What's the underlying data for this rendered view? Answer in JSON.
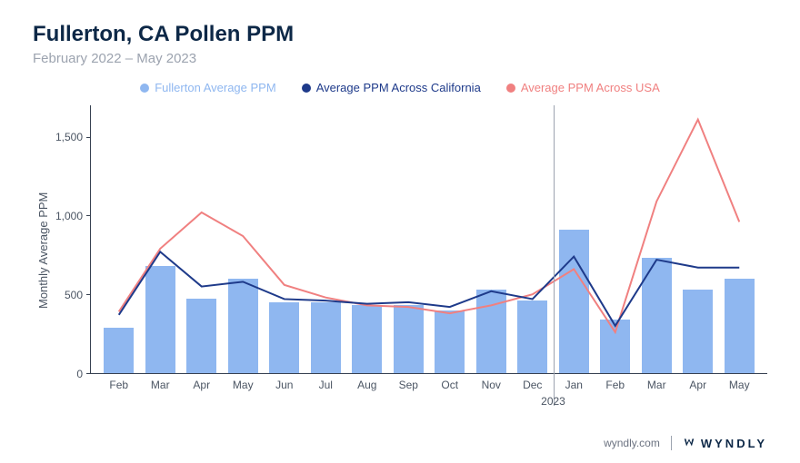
{
  "title": "Fullerton, CA Pollen PPM",
  "subtitle": "February 2022 – May 2023",
  "y_axis_label": "Monthly Average PPM",
  "legend": [
    {
      "label": "Fullerton Average PPM",
      "color": "#8fb7f0",
      "type": "bar"
    },
    {
      "label": "Average PPM Across California",
      "color": "#1e3a8a",
      "type": "line"
    },
    {
      "label": "Average PPM Across USA",
      "color": "#f08080",
      "type": "line"
    }
  ],
  "y_ticks": [
    "1,500",
    "1,000",
    "500",
    "0"
  ],
  "y_max": 1700,
  "categories": [
    "Feb",
    "Mar",
    "Apr",
    "May",
    "Jun",
    "Jul",
    "Aug",
    "Sep",
    "Oct",
    "Nov",
    "Dec",
    "Jan",
    "Feb",
    "Mar",
    "Apr",
    "May"
  ],
  "year_marker": {
    "after_index": 10,
    "label": "2023"
  },
  "series": {
    "bars": {
      "color": "#8fb7f0",
      "values": [
        290,
        680,
        470,
        600,
        450,
        450,
        430,
        430,
        400,
        530,
        460,
        910,
        340,
        730,
        530,
        600
      ]
    },
    "california": {
      "color": "#1e3a8a",
      "width": 2,
      "values": [
        370,
        770,
        550,
        580,
        470,
        460,
        440,
        450,
        420,
        520,
        470,
        740,
        300,
        720,
        670,
        670
      ]
    },
    "usa": {
      "color": "#f08080",
      "width": 2,
      "values": [
        390,
        790,
        1020,
        870,
        560,
        480,
        430,
        420,
        380,
        430,
        500,
        660,
        260,
        1090,
        1610,
        960
      ]
    }
  },
  "colors": {
    "title": "#0d2847",
    "subtitle": "#9ca3af",
    "axis_text": "#4b5563",
    "axis_line": "#374151",
    "background": "#ffffff"
  },
  "footer": {
    "url": "wyndly.com",
    "brand": "WYNDLY"
  }
}
